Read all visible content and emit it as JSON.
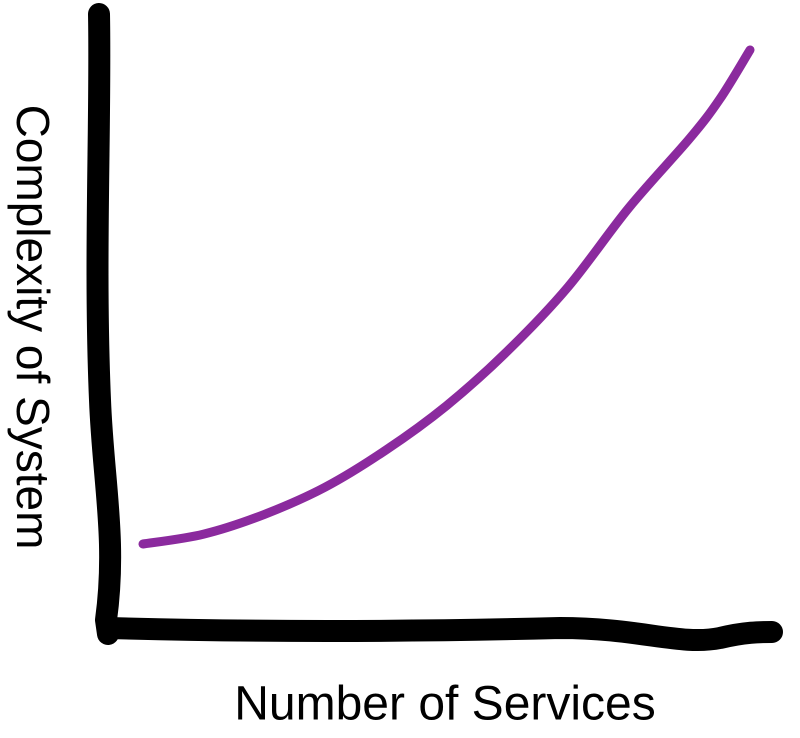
{
  "chart_data": {
    "type": "line",
    "title": "",
    "xlabel": "Number of Services",
    "ylabel": "Complexity of System",
    "grid": false,
    "series": [
      {
        "color": "#8B2A9E",
        "x": [
          0.0,
          0.1,
          0.2,
          0.3,
          0.4,
          0.5,
          0.6,
          0.7,
          0.8,
          0.9,
          0.95,
          1.0
        ],
        "values": [
          0.0,
          0.02,
          0.06,
          0.115,
          0.19,
          0.28,
          0.39,
          0.52,
          0.68,
          0.82,
          0.9,
          1.0
        ]
      }
    ],
    "axis_color": "#000000"
  }
}
